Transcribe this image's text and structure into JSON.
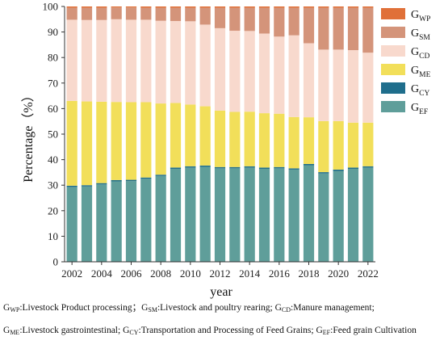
{
  "chart_data": {
    "type": "bar",
    "stacked": true,
    "categories": [
      "2002",
      "2003",
      "2004",
      "2005",
      "2006",
      "2007",
      "2008",
      "2009",
      "2010",
      "2011",
      "2012",
      "2013",
      "2014",
      "2015",
      "2016",
      "2017",
      "2018",
      "2019",
      "2020",
      "2021",
      "2022"
    ],
    "x_tick_labels": [
      "2002",
      "2004",
      "2006",
      "2008",
      "2010",
      "2012",
      "2014",
      "2016",
      "2018",
      "2020",
      "2022"
    ],
    "xlabel": "year",
    "ylabel": "Percentage（%）",
    "ylim": [
      0,
      100
    ],
    "yticks": [
      0,
      10,
      20,
      30,
      40,
      50,
      60,
      70,
      80,
      90,
      100
    ],
    "legend_position": "right",
    "series": [
      {
        "key": "EF",
        "name": "G",
        "subscript": "EF",
        "color": "#5f9e9a",
        "values": [
          29.3,
          29.5,
          30.3,
          31.5,
          31.6,
          32.5,
          33.6,
          36.4,
          36.9,
          37.2,
          36.6,
          36.6,
          36.9,
          36.4,
          36.6,
          36.1,
          37.8,
          34.6,
          35.6,
          36.4,
          36.9
        ]
      },
      {
        "key": "CY",
        "name": "G",
        "subscript": "CY",
        "color": "#1f6e8c",
        "values": [
          0.5,
          0.5,
          0.5,
          0.5,
          0.5,
          0.5,
          0.5,
          0.5,
          0.5,
          0.5,
          0.5,
          0.5,
          0.5,
          0.5,
          0.5,
          0.5,
          0.5,
          0.5,
          0.5,
          0.5,
          0.5
        ]
      },
      {
        "key": "ME",
        "name": "G",
        "subscript": "ME",
        "color": "#f2df5a",
        "values": [
          33.2,
          32.8,
          31.9,
          30.6,
          30.4,
          29.5,
          27.9,
          25.3,
          24.2,
          23.2,
          22.1,
          21.6,
          21.4,
          21.3,
          20.9,
          20.1,
          18.3,
          20.0,
          19.0,
          17.6,
          17.1
        ]
      },
      {
        "key": "CD",
        "name": "G",
        "subscript": "CD",
        "color": "#f8d9cd",
        "values": [
          31.8,
          31.9,
          32.0,
          32.4,
          32.3,
          32.3,
          32.4,
          32.1,
          32.6,
          32.0,
          32.3,
          31.8,
          31.6,
          31.2,
          30.2,
          32.0,
          29.0,
          28.0,
          28.0,
          28.4,
          27.4
        ]
      },
      {
        "key": "SM",
        "name": "G",
        "subscript": "SM",
        "color": "#d4947a",
        "values": [
          4.7,
          4.8,
          4.8,
          4.6,
          4.8,
          4.7,
          5.1,
          5.2,
          5.3,
          6.6,
          8.0,
          9.0,
          9.1,
          10.1,
          11.3,
          10.8,
          13.9,
          16.4,
          16.4,
          16.6,
          17.6
        ]
      },
      {
        "key": "WP",
        "name": "G",
        "subscript": "WP",
        "color": "#e07038",
        "values": [
          0.5,
          0.5,
          0.5,
          0.4,
          0.4,
          0.5,
          0.5,
          0.5,
          0.5,
          0.5,
          0.5,
          0.5,
          0.5,
          0.5,
          0.5,
          0.5,
          0.5,
          0.5,
          0.5,
          0.5,
          0.5
        ]
      }
    ],
    "legend_order": [
      "WP",
      "SM",
      "CD",
      "ME",
      "CY",
      "EF"
    ]
  },
  "caption": {
    "line1": [
      {
        "g": "G",
        "sub": "WP",
        "text": ":Livestock Product processing；"
      },
      {
        "g": "G",
        "sub": "SM",
        "text": ":Livestock and poultry rearing; "
      },
      {
        "g": "G",
        "sub": "CD",
        "text": ":Manure management;"
      }
    ],
    "line2": [
      {
        "g": "G",
        "sub": "ME",
        "text": ":Livestock gastrointestinal; "
      },
      {
        "g": "G",
        "sub": "CY",
        "text": ":Transportation and Processing of Feed Grains; "
      },
      {
        "g": "G",
        "sub": "EF",
        "text": ":Feed grain Cultivation"
      }
    ]
  }
}
